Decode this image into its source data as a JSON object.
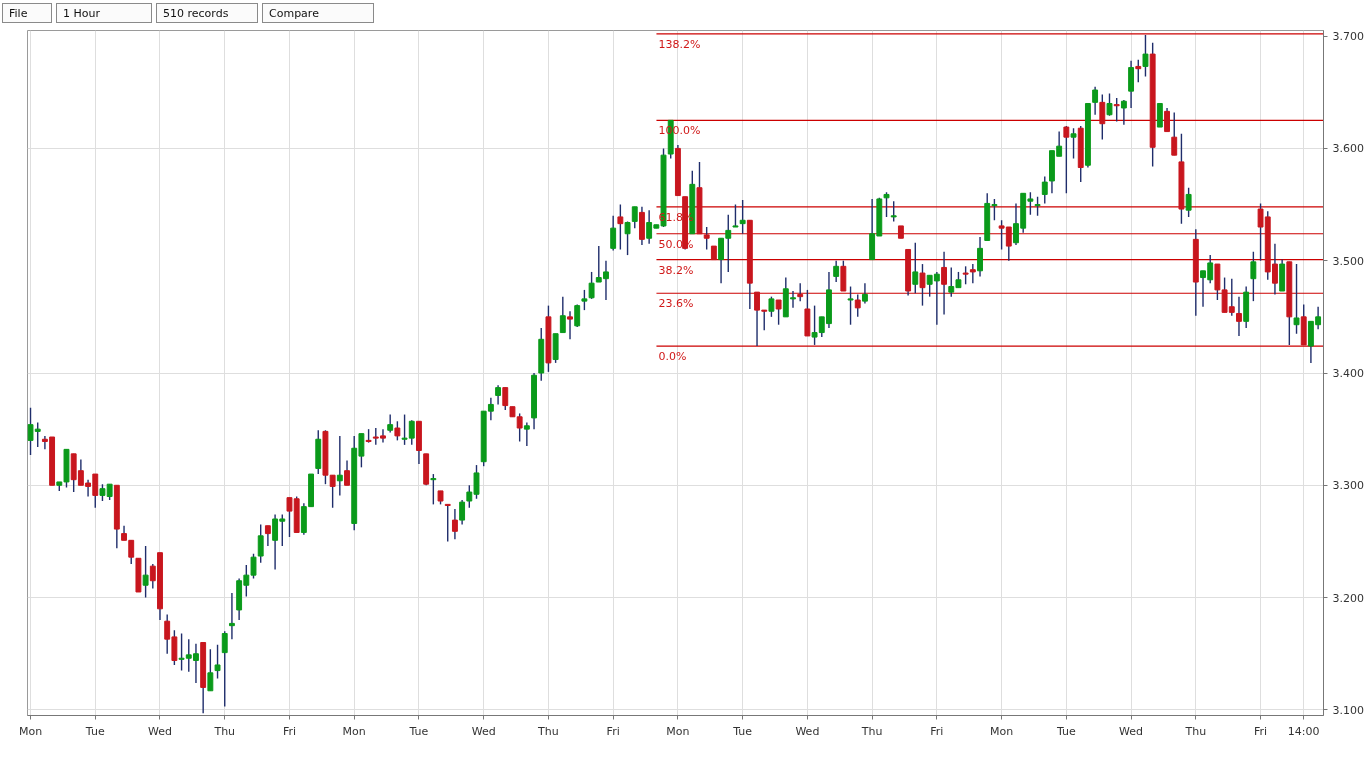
{
  "chart_data": {
    "type": "candlestick",
    "annotations": [
      "File",
      "1 Hour",
      "510 records",
      "Compare",
      {
        "text": "138.2%",
        "y": 3.702
      },
      {
        "text": "100.0%",
        "y": 3.625
      },
      {
        "text": "61.8%",
        "y": 3.548
      },
      {
        "text": "50.0%",
        "y": 3.524
      },
      {
        "text": "38.2%",
        "y": 3.501
      },
      {
        "text": "23.6%",
        "y": 3.471
      },
      {
        "text": "0.0%",
        "y": 3.424
      }
    ],
    "categories": [
      "Mon",
      null,
      null,
      null,
      null,
      null,
      null,
      null,
      null,
      "Tue",
      null,
      null,
      null,
      null,
      null,
      null,
      null,
      null,
      "Wed",
      null,
      null,
      null,
      null,
      null,
      null,
      null,
      null,
      "Thu",
      null,
      null,
      null,
      null,
      null,
      null,
      null,
      null,
      "Fri",
      null,
      null,
      null,
      null,
      null,
      null,
      null,
      null,
      "Mon",
      null,
      null,
      null,
      null,
      null,
      null,
      null,
      null,
      "Tue",
      null,
      null,
      null,
      null,
      null,
      null,
      null,
      null,
      "Wed",
      null,
      null,
      null,
      null,
      null,
      null,
      null,
      null,
      "Thu",
      null,
      null,
      null,
      null,
      null,
      null,
      null,
      null,
      "Fri",
      null,
      null,
      null,
      null,
      null,
      null,
      null,
      null,
      "Mon",
      null,
      null,
      null,
      null,
      null,
      null,
      null,
      null,
      "Tue",
      null,
      null,
      null,
      null,
      null,
      null,
      null,
      null,
      "Wed",
      null,
      null,
      null,
      null,
      null,
      null,
      null,
      null,
      "Thu",
      null,
      null,
      null,
      null,
      null,
      null,
      null,
      null,
      "Fri",
      null,
      null,
      null,
      null,
      null,
      null,
      null,
      null,
      "Mon",
      null,
      null,
      null,
      null,
      null,
      null,
      null,
      null,
      "Tue",
      null,
      null,
      null,
      null,
      null,
      null,
      null,
      null,
      "Wed",
      null,
      null,
      null,
      null,
      null,
      null,
      null,
      null,
      "Thu",
      null,
      null,
      null,
      null,
      null,
      null,
      null,
      null,
      "Fri",
      null,
      null,
      null,
      null,
      null,
      "14:00",
      null,
      null
    ],
    "ohlc": [
      [
        3.34,
        3.369,
        3.327,
        3.354
      ],
      [
        3.348,
        3.356,
        3.334,
        3.35
      ],
      [
        3.341,
        3.344,
        3.332,
        3.339
      ],
      [
        3.343,
        3.343,
        3.3,
        3.3
      ],
      [
        3.3,
        3.303,
        3.295,
        3.303
      ],
      [
        3.303,
        3.332,
        3.298,
        3.332
      ],
      [
        3.328,
        3.328,
        3.294,
        3.305
      ],
      [
        3.313,
        3.323,
        3.3,
        3.3
      ],
      [
        3.302,
        3.305,
        3.29,
        3.299
      ],
      [
        3.31,
        3.31,
        3.28,
        3.291
      ],
      [
        3.291,
        3.301,
        3.286,
        3.297
      ],
      [
        3.29,
        3.301,
        3.287,
        3.301
      ],
      [
        3.3,
        3.3,
        3.244,
        3.261
      ],
      [
        3.257,
        3.264,
        3.251,
        3.251
      ],
      [
        3.251,
        3.251,
        3.23,
        3.236
      ],
      [
        3.235,
        3.235,
        3.205,
        3.205
      ],
      [
        3.211,
        3.246,
        3.2,
        3.22
      ],
      [
        3.228,
        3.23,
        3.208,
        3.215
      ],
      [
        3.24,
        3.24,
        3.18,
        3.19
      ],
      [
        3.179,
        3.185,
        3.15,
        3.163
      ],
      [
        3.165,
        3.171,
        3.14,
        3.144
      ],
      [
        3.145,
        3.168,
        3.135,
        3.146
      ],
      [
        3.146,
        3.163,
        3.134,
        3.149
      ],
      [
        3.144,
        3.159,
        3.124,
        3.15
      ],
      [
        3.16,
        3.16,
        3.097,
        3.12
      ],
      [
        3.117,
        3.154,
        3.117,
        3.133
      ],
      [
        3.135,
        3.158,
        3.128,
        3.14
      ],
      [
        3.151,
        3.17,
        3.103,
        3.168
      ],
      [
        3.175,
        3.204,
        3.163,
        3.177
      ],
      [
        3.189,
        3.217,
        3.18,
        3.215
      ],
      [
        3.211,
        3.229,
        3.201,
        3.22
      ],
      [
        3.22,
        3.239,
        3.217,
        3.236
      ],
      [
        3.237,
        3.265,
        3.231,
        3.255
      ],
      [
        3.264,
        3.264,
        3.246,
        3.257
      ],
      [
        3.251,
        3.274,
        3.225,
        3.27
      ],
      [
        3.268,
        3.274,
        3.246,
        3.27
      ],
      [
        3.289,
        3.289,
        3.254,
        3.277
      ],
      [
        3.288,
        3.29,
        3.258,
        3.258
      ],
      [
        3.258,
        3.284,
        3.256,
        3.281
      ],
      [
        3.281,
        3.31,
        3.281,
        3.31
      ],
      [
        3.315,
        3.349,
        3.31,
        3.341
      ],
      [
        3.348,
        3.349,
        3.301,
        3.309
      ],
      [
        3.309,
        3.309,
        3.28,
        3.299
      ],
      [
        3.304,
        3.344,
        3.291,
        3.309
      ],
      [
        3.313,
        3.322,
        3.3,
        3.3
      ],
      [
        3.266,
        3.344,
        3.26,
        3.333
      ],
      [
        3.326,
        3.346,
        3.316,
        3.346
      ],
      [
        3.34,
        3.35,
        3.338,
        3.339
      ],
      [
        3.343,
        3.351,
        3.336,
        3.342
      ],
      [
        3.344,
        3.35,
        3.338,
        3.342
      ],
      [
        3.349,
        3.363,
        3.347,
        3.354
      ],
      [
        3.351,
        3.357,
        3.34,
        3.344
      ],
      [
        3.341,
        3.363,
        3.336,
        3.342
      ],
      [
        3.342,
        3.358,
        3.336,
        3.357
      ],
      [
        3.357,
        3.357,
        3.319,
        3.331
      ],
      [
        3.328,
        3.328,
        3.3,
        3.301
      ],
      [
        3.305,
        3.31,
        3.283,
        3.306
      ],
      [
        3.295,
        3.295,
        3.283,
        3.286
      ],
      [
        3.283,
        3.283,
        3.25,
        3.282
      ],
      [
        3.269,
        3.279,
        3.252,
        3.259
      ],
      [
        3.269,
        3.287,
        3.265,
        3.285
      ],
      [
        3.286,
        3.3,
        3.28,
        3.294
      ],
      [
        3.292,
        3.318,
        3.288,
        3.311
      ],
      [
        3.321,
        3.366,
        3.317,
        3.366
      ],
      [
        3.366,
        3.378,
        3.358,
        3.372
      ],
      [
        3.38,
        3.389,
        3.372,
        3.387
      ],
      [
        3.387,
        3.387,
        3.367,
        3.371
      ],
      [
        3.37,
        3.37,
        3.361,
        3.361
      ],
      [
        3.361,
        3.364,
        3.339,
        3.351
      ],
      [
        3.35,
        3.356,
        3.335,
        3.353
      ],
      [
        3.36,
        3.4,
        3.35,
        3.398
      ],
      [
        3.4,
        3.44,
        3.393,
        3.43
      ],
      [
        3.45,
        3.46,
        3.401,
        3.409
      ],
      [
        3.412,
        3.435,
        3.409,
        3.435
      ],
      [
        3.436,
        3.468,
        3.436,
        3.451
      ],
      [
        3.45,
        3.455,
        3.43,
        3.448
      ],
      [
        3.442,
        3.461,
        3.441,
        3.46
      ],
      [
        3.464,
        3.474,
        3.456,
        3.466
      ],
      [
        3.467,
        3.49,
        3.466,
        3.48
      ],
      [
        3.481,
        3.513,
        3.481,
        3.485
      ],
      [
        3.484,
        3.5,
        3.465,
        3.49
      ],
      [
        3.511,
        3.54,
        3.509,
        3.529
      ],
      [
        3.539,
        3.55,
        3.51,
        3.533
      ],
      [
        3.524,
        3.535,
        3.505,
        3.534
      ],
      [
        3.535,
        3.548,
        3.529,
        3.548
      ],
      [
        3.543,
        3.548,
        3.514,
        3.519
      ],
      [
        3.52,
        3.545,
        3.515,
        3.534
      ],
      [
        3.529,
        3.532,
        3.529,
        3.532
      ],
      [
        3.531,
        3.6,
        3.53,
        3.594
      ],
      [
        3.595,
        3.625,
        3.591,
        3.625
      ],
      [
        3.6,
        3.603,
        3.558,
        3.558
      ],
      [
        3.557,
        3.557,
        3.51,
        3.511
      ],
      [
        3.524,
        3.58,
        3.524,
        3.568
      ],
      [
        3.565,
        3.588,
        3.524,
        3.524
      ],
      [
        3.523,
        3.53,
        3.51,
        3.52
      ],
      [
        3.513,
        3.513,
        3.501,
        3.501
      ],
      [
        3.501,
        3.52,
        3.48,
        3.52
      ],
      [
        3.52,
        3.541,
        3.49,
        3.527
      ],
      [
        3.53,
        3.55,
        3.53,
        3.531
      ],
      [
        3.533,
        3.554,
        3.524,
        3.536
      ],
      [
        3.536,
        3.536,
        3.457,
        3.48
      ],
      [
        3.472,
        3.472,
        3.424,
        3.456
      ],
      [
        3.456,
        3.456,
        3.438,
        3.455
      ],
      [
        3.455,
        3.468,
        3.45,
        3.466
      ],
      [
        3.465,
        3.465,
        3.443,
        3.457
      ],
      [
        3.45,
        3.485,
        3.45,
        3.475
      ],
      [
        3.466,
        3.473,
        3.458,
        3.467
      ],
      [
        3.47,
        3.48,
        3.464,
        3.468
      ],
      [
        3.457,
        3.474,
        3.433,
        3.433
      ],
      [
        3.432,
        3.46,
        3.425,
        3.436
      ],
      [
        3.436,
        3.45,
        3.432,
        3.45
      ],
      [
        3.444,
        3.49,
        3.44,
        3.474
      ],
      [
        3.486,
        3.5,
        3.481,
        3.495
      ],
      [
        3.495,
        3.5,
        3.473,
        3.473
      ],
      [
        3.465,
        3.477,
        3.443,
        3.466
      ],
      [
        3.465,
        3.47,
        3.45,
        3.458
      ],
      [
        3.464,
        3.48,
        3.462,
        3.47
      ],
      [
        3.501,
        3.555,
        3.501,
        3.524
      ],
      [
        3.522,
        3.556,
        3.522,
        3.555
      ],
      [
        3.556,
        3.561,
        3.539,
        3.559
      ],
      [
        3.539,
        3.553,
        3.535,
        3.54
      ],
      [
        3.531,
        3.531,
        3.52,
        3.52
      ],
      [
        3.51,
        3.51,
        3.469,
        3.473
      ],
      [
        3.479,
        3.516,
        3.471,
        3.49
      ],
      [
        3.489,
        3.497,
        3.46,
        3.476
      ],
      [
        3.479,
        3.487,
        3.468,
        3.487
      ],
      [
        3.482,
        3.49,
        3.443,
        3.488
      ],
      [
        3.494,
        3.508,
        3.452,
        3.479
      ],
      [
        3.472,
        3.494,
        3.468,
        3.477
      ],
      [
        3.476,
        3.49,
        3.476,
        3.483
      ],
      [
        3.489,
        3.495,
        3.479,
        3.488
      ],
      [
        3.492,
        3.497,
        3.48,
        3.49
      ],
      [
        3.491,
        3.521,
        3.486,
        3.511
      ],
      [
        3.518,
        3.56,
        3.518,
        3.551
      ],
      [
        3.549,
        3.555,
        3.536,
        3.55
      ],
      [
        3.531,
        3.536,
        3.51,
        3.529
      ],
      [
        3.53,
        3.53,
        3.5,
        3.513
      ],
      [
        3.516,
        3.551,
        3.514,
        3.533
      ],
      [
        3.529,
        3.56,
        3.525,
        3.56
      ],
      [
        3.553,
        3.561,
        3.541,
        3.555
      ],
      [
        3.549,
        3.557,
        3.54,
        3.55
      ],
      [
        3.559,
        3.575,
        3.551,
        3.57
      ],
      [
        3.571,
        3.598,
        3.56,
        3.598
      ],
      [
        3.593,
        3.615,
        3.593,
        3.602
      ],
      [
        3.619,
        3.62,
        3.56,
        3.61
      ],
      [
        3.61,
        3.618,
        3.591,
        3.613
      ],
      [
        3.618,
        3.62,
        3.57,
        3.583
      ],
      [
        3.585,
        3.64,
        3.583,
        3.64
      ],
      [
        3.641,
        3.655,
        3.63,
        3.652
      ],
      [
        3.641,
        3.648,
        3.608,
        3.622
      ],
      [
        3.63,
        3.649,
        3.629,
        3.64
      ],
      [
        3.639,
        3.645,
        3.624,
        3.638
      ],
      [
        3.636,
        3.643,
        3.621,
        3.642
      ],
      [
        3.651,
        3.678,
        3.636,
        3.672
      ],
      [
        3.673,
        3.679,
        3.659,
        3.671
      ],
      [
        3.673,
        3.701,
        3.664,
        3.684
      ],
      [
        3.684,
        3.694,
        3.584,
        3.601
      ],
      [
        3.619,
        3.64,
        3.619,
        3.64
      ],
      [
        3.633,
        3.636,
        3.615,
        3.615
      ],
      [
        3.61,
        3.632,
        3.594,
        3.594
      ],
      [
        3.588,
        3.613,
        3.533,
        3.546
      ],
      [
        3.545,
        3.565,
        3.539,
        3.559
      ],
      [
        3.519,
        3.528,
        3.451,
        3.481
      ],
      [
        3.485,
        3.491,
        3.459,
        3.491
      ],
      [
        3.483,
        3.505,
        3.48,
        3.498
      ],
      [
        3.497,
        3.497,
        3.465,
        3.474
      ],
      [
        3.474,
        3.485,
        3.454,
        3.454
      ],
      [
        3.459,
        3.484,
        3.451,
        3.454
      ],
      [
        3.453,
        3.468,
        3.433,
        3.446
      ],
      [
        3.446,
        3.477,
        3.44,
        3.472
      ],
      [
        3.484,
        3.508,
        3.464,
        3.499
      ],
      [
        3.546,
        3.551,
        3.5,
        3.53
      ],
      [
        3.539,
        3.544,
        3.483,
        3.49
      ],
      [
        3.497,
        3.515,
        3.47,
        3.48
      ],
      [
        3.473,
        3.501,
        3.473,
        3.497
      ],
      [
        3.499,
        3.499,
        3.425,
        3.45
      ],
      [
        3.443,
        3.497,
        3.435,
        3.449
      ],
      [
        3.45,
        3.461,
        3.425,
        3.425
      ],
      [
        3.424,
        3.446,
        3.409,
        3.446
      ],
      [
        3.443,
        3.459,
        3.439,
        3.45
      ]
    ],
    "colors": [
      "#0a9a1a",
      "#0a9a1a",
      "#c8161e",
      "#c8161e",
      "#0a9a1a",
      "#0a9a1a",
      "#c8161e",
      "#c8161e",
      "#c8161e",
      "#c8161e",
      "#0a9a1a",
      "#0a9a1a",
      "#c8161e",
      "#c8161e",
      "#c8161e",
      "#c8161e",
      "#0a9a1a",
      "#c8161e",
      "#c8161e",
      "#c8161e",
      "#c8161e",
      "#0a9a1a",
      "#0a9a1a",
      "#0a9a1a",
      "#c8161e",
      "#0a9a1a",
      "#0a9a1a",
      "#0a9a1a",
      "#0a9a1a",
      "#0a9a1a",
      "#0a9a1a",
      "#0a9a1a",
      "#0a9a1a",
      "#c8161e",
      "#0a9a1a",
      "#0a9a1a",
      "#c8161e",
      "#c8161e",
      "#0a9a1a",
      "#0a9a1a",
      "#0a9a1a",
      "#c8161e",
      "#c8161e",
      "#0a9a1a",
      "#c8161e",
      "#0a9a1a",
      "#0a9a1a",
      "#c8161e",
      "#c8161e",
      "#c8161e",
      "#0a9a1a",
      "#c8161e",
      "#0a9a1a",
      "#0a9a1a",
      "#c8161e",
      "#c8161e",
      "#0a9a1a",
      "#c8161e",
      "#c8161e",
      "#c8161e",
      "#0a9a1a",
      "#0a9a1a",
      "#0a9a1a",
      "#0a9a1a",
      "#0a9a1a",
      "#0a9a1a",
      "#c8161e",
      "#c8161e",
      "#c8161e",
      "#0a9a1a",
      "#0a9a1a",
      "#0a9a1a",
      "#c8161e",
      "#0a9a1a",
      "#0a9a1a",
      "#c8161e",
      "#0a9a1a",
      "#0a9a1a",
      "#0a9a1a",
      "#0a9a1a",
      "#0a9a1a",
      "#0a9a1a",
      "#c8161e",
      "#0a9a1a",
      "#0a9a1a",
      "#c8161e",
      "#0a9a1a",
      "#0a9a1a",
      "#0a9a1a",
      "#0a9a1a",
      "#c8161e",
      "#c8161e",
      "#0a9a1a",
      "#c8161e",
      "#c8161e",
      "#c8161e",
      "#0a9a1a",
      "#0a9a1a",
      "#0a9a1a",
      "#0a9a1a",
      "#c8161e",
      "#c8161e",
      "#c8161e",
      "#0a9a1a",
      "#c8161e",
      "#0a9a1a",
      "#0a9a1a",
      "#c8161e",
      "#c8161e",
      "#0a9a1a",
      "#0a9a1a",
      "#0a9a1a",
      "#0a9a1a",
      "#c8161e",
      "#0a9a1a",
      "#c8161e",
      "#0a9a1a",
      "#0a9a1a",
      "#0a9a1a",
      "#0a9a1a",
      "#0a9a1a",
      "#c8161e",
      "#c8161e",
      "#0a9a1a",
      "#c8161e",
      "#0a9a1a",
      "#0a9a1a",
      "#c8161e",
      "#0a9a1a",
      "#0a9a1a",
      "#c8161e",
      "#c8161e",
      "#0a9a1a",
      "#0a9a1a",
      "#0a9a1a",
      "#c8161e",
      "#c8161e",
      "#0a9a1a",
      "#0a9a1a",
      "#0a9a1a",
      "#0a9a1a",
      "#0a9a1a",
      "#0a9a1a",
      "#0a9a1a",
      "#c8161e",
      "#0a9a1a",
      "#c8161e",
      "#0a9a1a",
      "#0a9a1a",
      "#c8161e",
      "#0a9a1a",
      "#c8161e",
      "#0a9a1a",
      "#0a9a1a",
      "#c8161e",
      "#0a9a1a",
      "#c8161e",
      "#0a9a1a",
      "#c8161e",
      "#c8161e",
      "#c8161e",
      "#0a9a1a",
      "#c8161e",
      "#0a9a1a",
      "#0a9a1a",
      "#c8161e",
      "#c8161e",
      "#c8161e",
      "#c8161e",
      "#0a9a1a",
      "#0a9a1a",
      "#c8161e",
      "#c8161e",
      "#c8161e",
      "#0a9a1a",
      "#c8161e",
      "#0a9a1a",
      "#c8161e",
      "#0a9a1a",
      "#0a9a1a"
    ],
    "ylim": [
      3.095,
      3.705
    ],
    "yticks": [
      {
        "value": 3.1,
        "label": "3.100"
      },
      {
        "value": 3.2,
        "label": "3.200"
      },
      {
        "value": 3.3,
        "label": "3.300"
      },
      {
        "value": 3.4,
        "label": "3.400"
      },
      {
        "value": 3.5,
        "label": "3.500"
      },
      {
        "value": 3.6,
        "label": "3.600"
      },
      {
        "value": 3.7,
        "label": "3.700"
      }
    ],
    "grid": true,
    "ref_lines": [
      {
        "axis": "y",
        "value": 3.702,
        "color": "#cc0000"
      },
      {
        "axis": "y",
        "value": 3.625,
        "color": "#cc0000"
      },
      {
        "axis": "y",
        "value": 3.548,
        "color": "#cc0000"
      },
      {
        "axis": "y",
        "value": 3.524,
        "color": "#cc0000"
      },
      {
        "axis": "y",
        "value": 3.501,
        "color": "#cc0000"
      },
      {
        "axis": "y",
        "value": 3.471,
        "color": "#cc0000"
      },
      {
        "axis": "y",
        "value": 3.424,
        "color": "#cc0000"
      }
    ]
  }
}
